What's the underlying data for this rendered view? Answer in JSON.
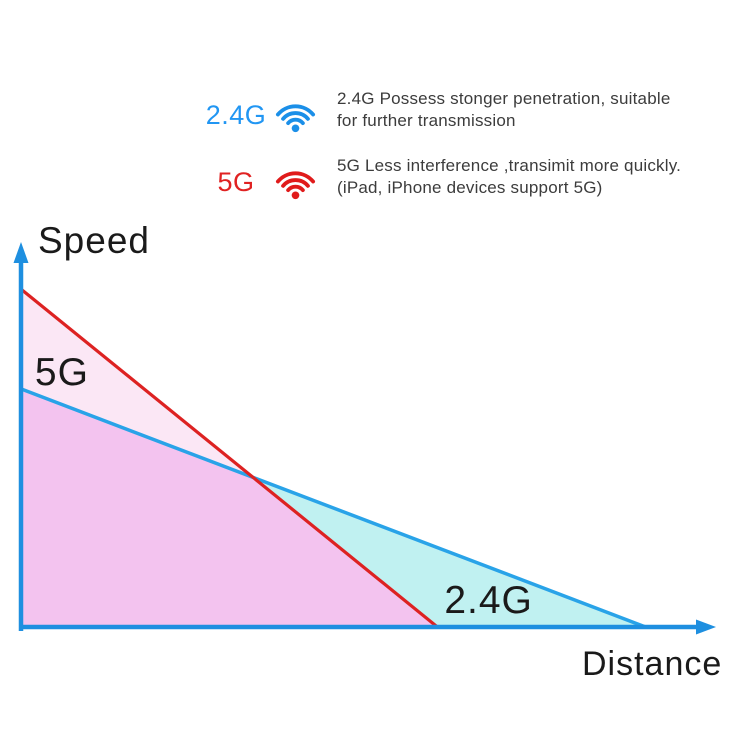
{
  "page": {
    "background": "#ffffff"
  },
  "legend": {
    "rows": [
      {
        "label": "2.4G",
        "label_color": "#2196f3",
        "icon": "wifi-icon",
        "icon_color": "#1b8fe8",
        "desc_line1": "2.4G Possess stonger penetration, suitable",
        "desc_line2": "for further transmission"
      },
      {
        "label": "5G",
        "label_color": "#e02222",
        "icon": "wifi-icon",
        "icon_color": "#e01b1b",
        "desc_line1": "5G Less interference ,transimit more quickly.",
        "desc_line2": "(iPad, iPhone devices support 5G)"
      }
    ]
  },
  "chart_data": {
    "type": "area",
    "title": "",
    "xlabel": "Distance",
    "ylabel": "Speed",
    "x_range": [
      0,
      100
    ],
    "y_range": [
      0,
      100
    ],
    "grid": false,
    "legend_position": "top",
    "axis_color": "#1e8fe0",
    "series": [
      {
        "name": "5G",
        "line_color": "#dd2222",
        "fill_color": "#fbe7f5",
        "points": [
          [
            0,
            88
          ],
          [
            60,
            0
          ]
        ],
        "speed_intercept": 88,
        "distance_intercept": 60
      },
      {
        "name": "2.4G",
        "line_color": "#29a3e8",
        "fill_color": "#c0f1f1",
        "points": [
          [
            0,
            62
          ],
          [
            90,
            0
          ]
        ],
        "speed_intercept": 62,
        "distance_intercept": 90
      }
    ],
    "overlap_fill_color": "#f3c3ef",
    "intersection": {
      "x": 33.4,
      "y": 39
    },
    "annotations": [
      {
        "text": "5G",
        "x": 2,
        "y": 63
      },
      {
        "text": "2.4G",
        "x": 61,
        "y": 3.6
      }
    ]
  }
}
